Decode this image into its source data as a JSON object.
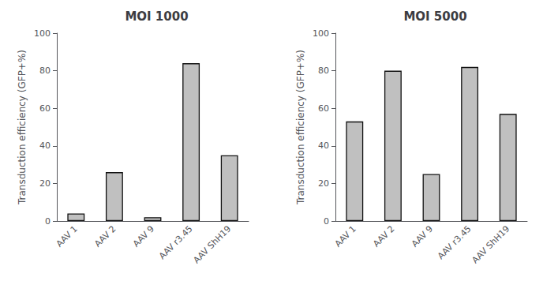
{
  "chart_data": [
    {
      "type": "bar",
      "title": "MOI 1000",
      "categories": [
        "AAV 1",
        "AAV 2",
        "AAV 9",
        "AAV r3.45",
        "AAV ShH19"
      ],
      "values": [
        4,
        26,
        2,
        84,
        35
      ],
      "ylabel": "Transduction efficiency (GFP+%)",
      "color": "#c0c0c0",
      "ylim": [
        0,
        100
      ],
      "yticks": [
        0,
        20,
        40,
        60,
        80,
        100
      ],
      "grid": false
    },
    {
      "type": "bar",
      "title": "MOI 5000",
      "categories": [
        "AAV 1",
        "AAV 2",
        "AAV 9",
        "AAV r3.45",
        "AAV ShH19"
      ],
      "values": [
        53,
        80,
        25,
        82,
        57
      ],
      "ylabel": "Transduction efficiency (GFP+%)",
      "color": "#c0c0c0",
      "ylim": [
        0,
        100
      ],
      "yticks": [
        0,
        20,
        40,
        60,
        80,
        100
      ],
      "grid": false
    }
  ]
}
